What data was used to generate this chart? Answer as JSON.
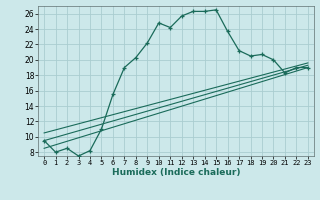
{
  "xlabel": "Humidex (Indice chaleur)",
  "bg_color": "#cce8ea",
  "grid_color": "#aacdd0",
  "line_color": "#1a6b5a",
  "xlim": [
    -0.5,
    23.5
  ],
  "ylim": [
    7.5,
    27.0
  ],
  "xticks": [
    0,
    1,
    2,
    3,
    4,
    5,
    6,
    7,
    8,
    9,
    10,
    11,
    12,
    13,
    14,
    15,
    16,
    17,
    18,
    19,
    20,
    21,
    22,
    23
  ],
  "yticks": [
    8,
    10,
    12,
    14,
    16,
    18,
    20,
    22,
    24,
    26
  ],
  "series1_x": [
    0,
    1,
    2,
    3,
    4,
    5,
    6,
    7,
    8,
    9,
    10,
    11,
    12,
    13,
    14,
    15,
    16,
    17,
    18,
    19,
    20,
    21,
    22,
    23
  ],
  "series1_y": [
    9.5,
    8.0,
    8.5,
    7.5,
    8.2,
    11.0,
    15.5,
    19.0,
    20.3,
    22.2,
    24.8,
    24.2,
    25.7,
    26.3,
    26.3,
    26.5,
    23.7,
    21.2,
    20.5,
    20.7,
    20.0,
    18.3,
    19.0,
    19.0
  ],
  "series2_x": [
    0,
    23
  ],
  "series2_y": [
    8.5,
    19.0
  ],
  "series3_x": [
    0,
    23
  ],
  "series3_y": [
    9.5,
    19.3
  ],
  "series4_x": [
    0,
    23
  ],
  "series4_y": [
    10.5,
    19.6
  ]
}
